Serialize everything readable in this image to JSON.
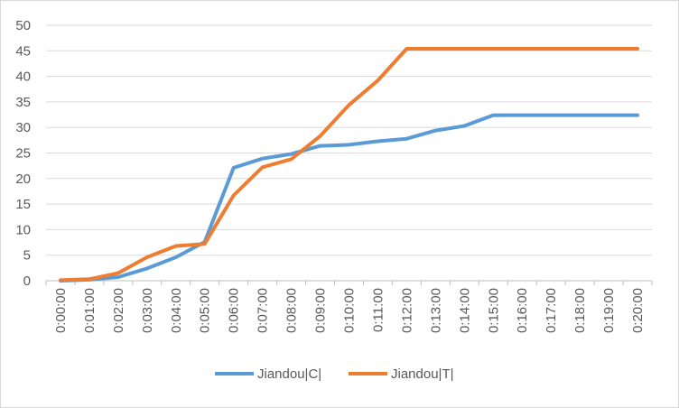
{
  "chart_data": {
    "type": "line",
    "title": "",
    "xlabel": "",
    "ylabel": "",
    "categories": [
      "0:00:00",
      "0:01:00",
      "0:02:00",
      "0:03:00",
      "0:04:00",
      "0:05:00",
      "0:06:00",
      "0:07:00",
      "0:08:00",
      "0:09:00",
      "0:10:00",
      "0:11:00",
      "0:12:00",
      "0:13:00",
      "0:14:00",
      "0:15:00",
      "0:16:00",
      "0:17:00",
      "0:18:00",
      "0:19:00",
      "0:20:00"
    ],
    "ylim": [
      0,
      50
    ],
    "yticks": [
      "0",
      "5",
      "10",
      "15",
      "20",
      "25",
      "30",
      "35",
      "40",
      "45",
      "50"
    ],
    "grid": "horizontal",
    "legend": "bottom",
    "series": [
      {
        "name": "Jiandou|C|",
        "color": "#5b9bd5",
        "values": [
          0,
          0.2,
          0.7,
          2.4,
          4.6,
          7.6,
          22.1,
          23.9,
          24.8,
          26.4,
          26.6,
          27.3,
          27.8,
          29.4,
          30.3,
          32.4,
          32.4,
          32.4,
          32.4,
          32.4,
          32.4
        ]
      },
      {
        "name": "Jiandou|T|",
        "color": "#ed7d31",
        "values": [
          0.1,
          0.3,
          1.5,
          4.6,
          6.8,
          7.2,
          16.7,
          22.2,
          23.8,
          28.3,
          34.4,
          39.2,
          45.4,
          45.4,
          45.4,
          45.4,
          45.4,
          45.4,
          45.4,
          45.4,
          45.4
        ]
      }
    ]
  }
}
